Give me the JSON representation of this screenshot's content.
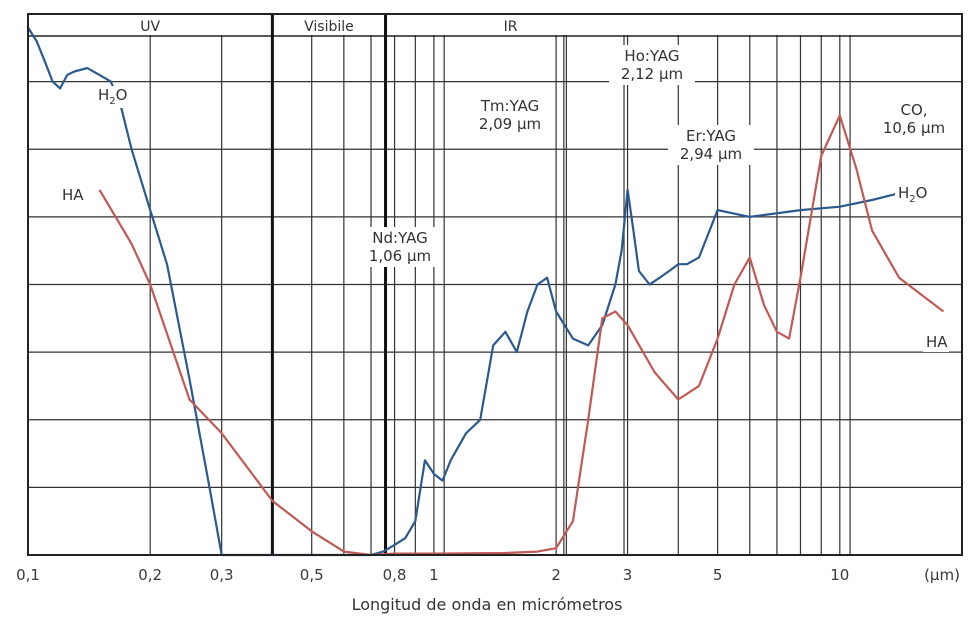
{
  "chart_data": {
    "type": "line",
    "xlabel": "Longitud de onda en micrómetros",
    "x_unit": "(µm)",
    "x_scale": "log",
    "xlim": [
      0.1,
      20
    ],
    "y_scale": "relative, unlabeled",
    "ylim": [
      0,
      8
    ],
    "grid": true,
    "x_ticks": [
      {
        "value": 0.1,
        "label": "0,1"
      },
      {
        "value": 0.2,
        "label": "0,2"
      },
      {
        "value": 0.3,
        "label": "0,3"
      },
      {
        "value": 0.5,
        "label": "0,5"
      },
      {
        "value": 0.8,
        "label": "0,8"
      },
      {
        "value": 1,
        "label": "1"
      },
      {
        "value": 2,
        "label": "2"
      },
      {
        "value": 3,
        "label": "3"
      },
      {
        "value": 5,
        "label": "5"
      },
      {
        "value": 10,
        "label": "10"
      }
    ],
    "regions": [
      {
        "label": "UV",
        "from": 0.1,
        "to": 0.4
      },
      {
        "label": "Visibile",
        "from": 0.4,
        "to": 0.76
      },
      {
        "label": "IR",
        "from": 0.76,
        "to": 20
      }
    ],
    "annotations": [
      {
        "lines": [
          "Nd:YAG",
          "1,06 µm"
        ],
        "x": 1.06
      },
      {
        "lines": [
          "Tm:YAG",
          "2,09 µm"
        ],
        "x": 2.09
      },
      {
        "lines": [
          "Ho:YAG",
          "2,12 µm"
        ],
        "x": 2.12
      },
      {
        "lines": [
          "Er:YAG",
          "2,94 µm"
        ],
        "x": 2.94
      },
      {
        "lines": [
          "CO,",
          "10,6 µm"
        ],
        "x": 10.6
      }
    ],
    "series": [
      {
        "name": "H2O",
        "color": "#2b5a8f",
        "x": [
          0.1,
          0.105,
          0.11,
          0.115,
          0.12,
          0.125,
          0.13,
          0.14,
          0.15,
          0.16,
          0.17,
          0.18,
          0.2,
          0.22,
          0.25,
          0.28,
          0.3,
          0.7,
          0.75,
          0.8,
          0.85,
          0.9,
          0.95,
          1.0,
          1.05,
          1.1,
          1.2,
          1.3,
          1.4,
          1.5,
          1.6,
          1.7,
          1.8,
          1.9,
          2.0,
          2.2,
          2.4,
          2.6,
          2.8,
          2.9,
          3.0,
          3.1,
          3.2,
          3.4,
          3.6,
          3.8,
          4.0,
          4.2,
          4.5,
          5.0,
          6.0,
          8.0,
          10.0,
          12.0,
          14.0
        ],
        "y": [
          7.8,
          7.6,
          7.3,
          7.0,
          6.9,
          7.1,
          7.15,
          7.2,
          7.1,
          7.0,
          6.6,
          6.0,
          5.1,
          4.3,
          2.6,
          1.0,
          0.0,
          0.0,
          0.05,
          0.15,
          0.25,
          0.5,
          1.4,
          1.2,
          1.1,
          1.4,
          1.8,
          2.0,
          3.1,
          3.3,
          3.0,
          3.6,
          4.0,
          4.1,
          3.6,
          3.2,
          3.1,
          3.4,
          4.0,
          4.5,
          5.4,
          4.8,
          4.2,
          4.0,
          4.1,
          4.2,
          4.3,
          4.3,
          4.4,
          5.1,
          5.0,
          5.1,
          5.15,
          5.25,
          5.35
        ]
      },
      {
        "name": "HA",
        "color": "#c05a55",
        "x": [
          0.15,
          0.18,
          0.2,
          0.25,
          0.3,
          0.4,
          0.5,
          0.6,
          0.7,
          0.8,
          1.0,
          1.5,
          1.8,
          2.0,
          2.2,
          2.4,
          2.6,
          2.8,
          3.0,
          3.5,
          4.0,
          4.5,
          5.0,
          5.5,
          6.0,
          6.5,
          7.0,
          7.5,
          8.0,
          9.0,
          10.0,
          11.0,
          12.0,
          14.0,
          18.0
        ],
        "y": [
          5.4,
          4.6,
          4.0,
          2.3,
          1.8,
          0.8,
          0.35,
          0.05,
          0.0,
          0.02,
          0.02,
          0.03,
          0.05,
          0.1,
          0.5,
          2.0,
          3.5,
          3.6,
          3.4,
          2.7,
          2.3,
          2.5,
          3.2,
          4.0,
          4.4,
          3.7,
          3.3,
          3.2,
          4.1,
          5.9,
          6.5,
          5.7,
          4.8,
          4.1,
          3.6
        ]
      }
    ],
    "series_labels": [
      {
        "series": "H2O",
        "text_main": "H",
        "text_sub": "2",
        "text_tail": "O"
      },
      {
        "series": "HA",
        "text": "HA"
      }
    ]
  }
}
